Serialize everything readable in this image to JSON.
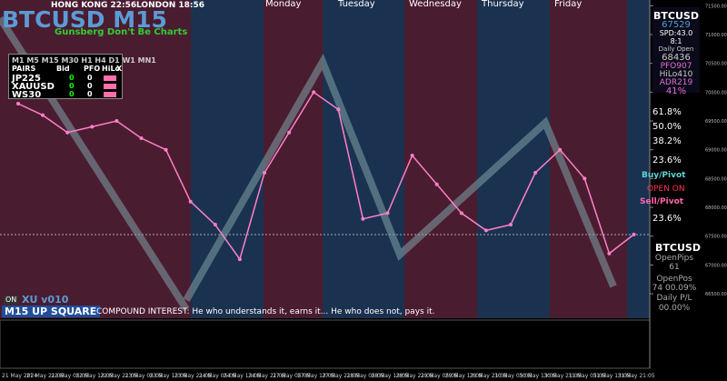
{
  "header": {
    "title": "BTCUSD M15",
    "clocks": [
      "HONG KONG 22:56",
      "LONDON 18:56"
    ],
    "subtitle": "Gunsberg Don't Be Charts"
  },
  "days": [
    "Monday",
    "Tuesday",
    "Wednesday",
    "Thursday",
    "Friday"
  ],
  "pairs_table": {
    "timeframes": "M1 M5 M15 M30 H1 H4 D1 W1 MN1",
    "columns": [
      "PAIRS",
      "Bid",
      "PFO",
      "HiLo",
      "X"
    ],
    "rows": [
      [
        "JP225",
        "0",
        "0"
      ],
      [
        "XAUUSD",
        "0",
        "0"
      ],
      [
        "WS30",
        "0",
        "0"
      ]
    ]
  },
  "info_panel": {
    "symbol": "BTCUSD",
    "price": "67529",
    "spread": "SPD:43.0",
    "ratio": "8:1",
    "daily_open_label": "Daily Open",
    "daily_open": "68436",
    "pfo": "PFO907",
    "hilo": "HiLo410",
    "adr": "ADR219",
    "percent": "41%"
  },
  "levels": [
    "61.8%",
    "50.0%",
    "38.2%",
    "23.6%",
    "23.6%"
  ],
  "pivot": [
    "Buy/Pivot",
    "OPEN ON",
    "Sell/Pivot"
  ],
  "position_panel": {
    "symbol": "BTCUSD",
    "open_pips_label": "OpenPips",
    "open_pips": "61",
    "open_pos_label": "OpenPos",
    "open_pos": "74 00.09%",
    "daily_pl_label": "Daily P/L",
    "daily_pl": "00.00%"
  },
  "footer": {
    "toggle": "ON",
    "version": "XU v010",
    "signal": "M15 UP SQUARE",
    "quote": "COMPOUND INTEREST: He who understands it, earns it... He who does not, pays it."
  },
  "chart_data": {
    "type": "line",
    "color": "#ff80c8",
    "categories": [
      "21 May 2024",
      "21 May 21:05",
      "22 May 05:05",
      "22 May 13:05",
      "22 May 21:05",
      "23 May 05:05",
      "23 May 13:05",
      "23 May 21:05",
      "24 May 05:05",
      "24 May 13:05",
      "24 May 21:05",
      "27 May 05:05",
      "27 May 13:05",
      "27 May 21:05",
      "28 May 05:05",
      "28 May 13:05",
      "28 May 21:05",
      "29 May 05:05",
      "29 May 13:05",
      "29 May 21:05",
      "30 May 05:05",
      "30 May 13:05",
      "30 May 21:05",
      "31 May 05:05",
      "31 May 13:05",
      "31 May 21:05"
    ],
    "values": [
      69800,
      69600,
      69300,
      69400,
      69500,
      69200,
      69000,
      68100,
      67700,
      67100,
      68600,
      69300,
      70000,
      69700,
      67800,
      67900,
      68900,
      68400,
      67900,
      67600,
      67700,
      68600,
      69000,
      68500,
      67200,
      67529
    ],
    "ylim": [
      66075,
      71600
    ],
    "yticks": [
      {
        "value": 66500,
        "label": "66500.00"
      },
      {
        "value": 67000,
        "label": "67000.00"
      },
      {
        "value": 67500,
        "label": "67500.00"
      },
      {
        "value": 68000,
        "label": "68000.00"
      },
      {
        "value": 68500,
        "label": "68500.00"
      },
      {
        "value": 69000,
        "label": "69000.00"
      },
      {
        "value": 69500,
        "label": "69500.00"
      },
      {
        "value": 70000,
        "label": "70000.00"
      },
      {
        "value": 70500,
        "label": "70500.00"
      },
      {
        "value": 71000,
        "label": "71000.00"
      },
      {
        "value": 71500,
        "label": "71500.00"
      }
    ]
  }
}
